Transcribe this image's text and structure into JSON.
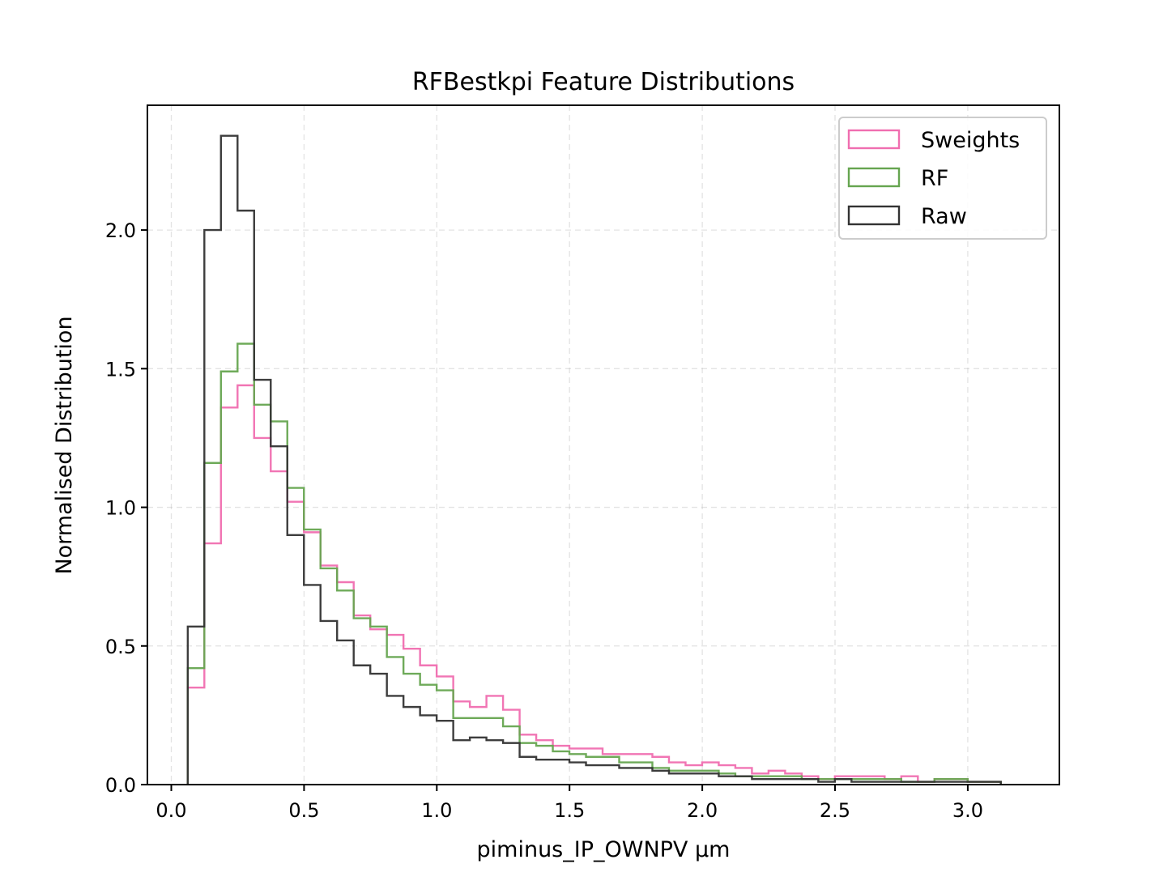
{
  "chart_data": {
    "type": "histogram",
    "title": "RFBestkpi Feature Distributions",
    "xlabel": "piminus_IP_OWNPV µm",
    "ylabel": "Normalised Distribution",
    "xlim": [
      -0.09,
      3.345
    ],
    "ylim": [
      0.0,
      2.45
    ],
    "xticks": [
      0.0,
      0.5,
      1.0,
      1.5,
      2.0,
      2.5,
      3.0
    ],
    "xtick_labels": [
      "0.0",
      "0.5",
      "1.0",
      "1.5",
      "2.0",
      "2.5",
      "3.0"
    ],
    "yticks": [
      0.0,
      0.5,
      1.0,
      1.5,
      2.0
    ],
    "ytick_labels": [
      "0.0",
      "0.5",
      "1.0",
      "1.5",
      "2.0"
    ],
    "grid": true,
    "legend_position": "top-right",
    "bin_start": 0.062,
    "bin_width": 0.0625,
    "series": [
      {
        "name": "Sweights",
        "color": "#f06eb0",
        "values": [
          0.35,
          0.87,
          1.36,
          1.44,
          1.25,
          1.13,
          1.02,
          0.91,
          0.79,
          0.73,
          0.61,
          0.56,
          0.54,
          0.49,
          0.43,
          0.39,
          0.3,
          0.28,
          0.32,
          0.27,
          0.18,
          0.16,
          0.14,
          0.13,
          0.13,
          0.11,
          0.11,
          0.11,
          0.1,
          0.08,
          0.07,
          0.08,
          0.07,
          0.06,
          0.04,
          0.05,
          0.04,
          0.03,
          0.02,
          0.03,
          0.03,
          0.03,
          0.02,
          0.03,
          0.01,
          0.02,
          0.02,
          0.01,
          0.01
        ]
      },
      {
        "name": "RF",
        "color": "#66a550",
        "values": [
          0.42,
          1.16,
          1.49,
          1.59,
          1.37,
          1.31,
          1.07,
          0.92,
          0.78,
          0.7,
          0.6,
          0.57,
          0.46,
          0.4,
          0.36,
          0.34,
          0.24,
          0.24,
          0.24,
          0.21,
          0.15,
          0.14,
          0.12,
          0.11,
          0.1,
          0.1,
          0.08,
          0.08,
          0.06,
          0.05,
          0.05,
          0.05,
          0.04,
          0.03,
          0.03,
          0.03,
          0.03,
          0.02,
          0.02,
          0.02,
          0.02,
          0.02,
          0.02,
          0.01,
          0.01,
          0.02,
          0.02,
          0.01,
          0.01
        ]
      },
      {
        "name": "Raw",
        "color": "#333333",
        "values": [
          0.57,
          2.0,
          2.34,
          2.07,
          1.46,
          1.22,
          0.9,
          0.72,
          0.59,
          0.52,
          0.43,
          0.4,
          0.32,
          0.28,
          0.25,
          0.23,
          0.16,
          0.17,
          0.16,
          0.15,
          0.1,
          0.09,
          0.09,
          0.08,
          0.07,
          0.07,
          0.06,
          0.06,
          0.05,
          0.04,
          0.04,
          0.04,
          0.03,
          0.03,
          0.02,
          0.02,
          0.02,
          0.02,
          0.01,
          0.02,
          0.01,
          0.01,
          0.01,
          0.01,
          0.01,
          0.01,
          0.01,
          0.01,
          0.01
        ]
      }
    ]
  }
}
